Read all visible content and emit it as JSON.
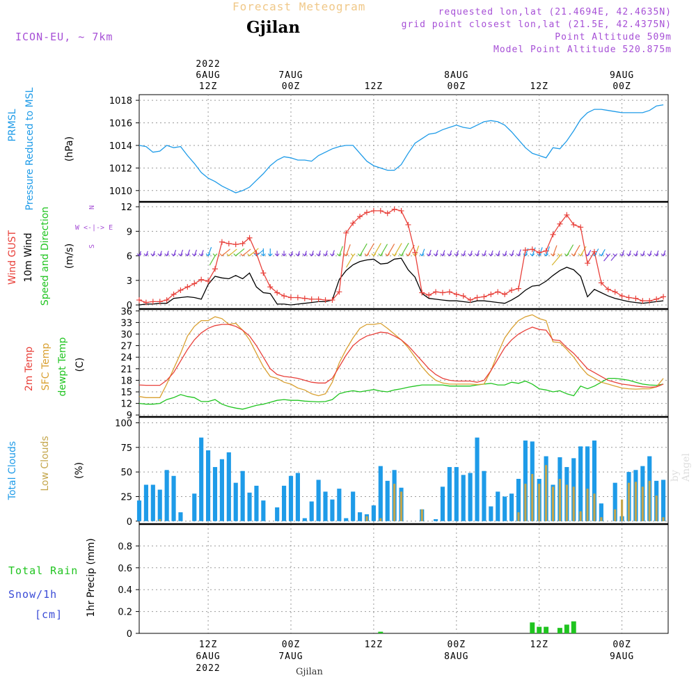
{
  "header": {
    "title": "Forecast Meteogram",
    "location": "Gjilan",
    "model": "ICON-EU, ~ 7km",
    "requested": "requested lon,lat (21.4694E, 42.4635N)",
    "grid_point": "grid point closest lon,lat (21.5E, 42.4375N)",
    "point_alt": "Point Altitude 509m",
    "model_alt": "Model Point Altitude 520.875m",
    "watermark": "by Angel",
    "footer_location": "Gjilan"
  },
  "colors": {
    "pressure": "#1e9be8",
    "gust": "#e8403a",
    "wind": "#000000",
    "t2m": "#e8403a",
    "tsfc": "#d9a030",
    "dewpt": "#1fc41f",
    "total_clouds": "#1e9be8",
    "low_clouds": "#c4a64c",
    "rain": "#1fc41f",
    "snow": "#3a4bd6",
    "header_purple": "#a64fd6",
    "title_gold": "#f0c888"
  },
  "chart_data": [
    {
      "type": "line",
      "name": "pressure",
      "ylabel_lines": [
        "PRMSL",
        "Pressure Reduced to MSL"
      ],
      "unit": "(hPa)",
      "ylim": [
        1009,
        1018.5
      ],
      "yticks": [
        1010,
        1012,
        1014,
        1016,
        1018
      ],
      "x_hours_from_6aug00z": [
        0,
        1,
        2,
        3,
        4,
        5,
        6,
        7,
        8,
        9,
        10,
        11,
        12,
        13,
        14,
        15,
        16,
        17,
        18,
        19,
        20,
        21,
        22,
        23,
        24,
        25,
        26,
        27,
        28,
        29,
        30,
        31,
        32,
        33,
        34,
        35,
        36,
        37,
        38,
        39,
        40,
        41,
        42,
        43,
        44,
        45,
        46,
        47,
        48,
        49,
        50,
        51,
        52,
        53,
        54,
        55,
        56,
        57,
        58,
        59,
        60,
        61,
        62,
        63,
        64,
        65,
        66,
        67,
        68,
        69,
        70,
        71,
        72,
        73,
        74,
        75,
        76
      ],
      "values": [
        1014,
        1013.9,
        1013.4,
        1013.5,
        1014,
        1013.8,
        1013.9,
        1013.1,
        1012.4,
        1011.6,
        1011.1,
        1010.8,
        1010.4,
        1010.1,
        1009.8,
        1010.0,
        1010.3,
        1010.9,
        1011.5,
        1012.2,
        1012.7,
        1013.0,
        1012.9,
        1012.7,
        1012.7,
        1012.6,
        1013.1,
        1013.4,
        1013.7,
        1013.9,
        1014.0,
        1014.0,
        1013.3,
        1012.6,
        1012.2,
        1012.0,
        1011.8,
        1011.8,
        1012.3,
        1013.3,
        1014.2,
        1014.6,
        1015.0,
        1015.1,
        1015.4,
        1015.6,
        1015.8,
        1015.6,
        1015.5,
        1015.8,
        1016.1,
        1016.2,
        1016.1,
        1015.8,
        1015.2,
        1014.5,
        1013.8,
        1013.3,
        1013.1,
        1012.9,
        1013.8,
        1013.7,
        1014.4,
        1015.3,
        1016.3,
        1016.9,
        1017.2,
        1017.2,
        1017.1,
        1017.0,
        1016.9,
        1016.9,
        1016.9,
        1016.9,
        1017.1,
        1017.5,
        1017.6
      ]
    },
    {
      "type": "line",
      "name": "wind",
      "ylabel_lines": [
        "Wind GUST",
        "10m Wind",
        "Speed and Direction"
      ],
      "unit": "(m/s)",
      "compass": [
        "N",
        "W <-|-> E",
        "S"
      ],
      "ylim": [
        -0.5,
        12.6
      ],
      "yticks": [
        0,
        3,
        6,
        9,
        12
      ],
      "x_hours_from_6aug00z": [
        0,
        1,
        2,
        3,
        4,
        5,
        6,
        7,
        8,
        9,
        10,
        11,
        12,
        13,
        14,
        15,
        16,
        17,
        18,
        19,
        20,
        21,
        22,
        23,
        24,
        25,
        26,
        27,
        28,
        29,
        30,
        31,
        32,
        33,
        34,
        35,
        36,
        37,
        38,
        39,
        40,
        41,
        42,
        43,
        44,
        45,
        46,
        47,
        48,
        49,
        50,
        51,
        52,
        53,
        54,
        55,
        56,
        57,
        58,
        59,
        60,
        61,
        62,
        63,
        64,
        65,
        66,
        67,
        68,
        69,
        70,
        71,
        72,
        73,
        74,
        75,
        76
      ],
      "gust": [
        0.6,
        0.3,
        0.4,
        0.4,
        0.6,
        1.3,
        1.8,
        2.2,
        2.6,
        3.1,
        2.9,
        4.4,
        7.7,
        7.5,
        7.4,
        7.5,
        8.2,
        6.3,
        3.9,
        2.2,
        1.5,
        1.1,
        0.9,
        0.9,
        0.8,
        0.7,
        0.7,
        0.6,
        0.6,
        1.6,
        8.8,
        10.0,
        10.8,
        11.3,
        11.5,
        11.5,
        11.2,
        11.7,
        11.5,
        9.8,
        6.4,
        1.5,
        1.2,
        1.6,
        1.5,
        1.6,
        1.3,
        1.1,
        0.6,
        0.9,
        1.0,
        1.3,
        1.6,
        1.3,
        1.8,
        2.0,
        6.7,
        6.8,
        6.4,
        6.6,
        8.6,
        9.9,
        11.0,
        9.8,
        9.5,
        5.1,
        6.5,
        2.7,
        1.9,
        1.6,
        1.1,
        0.9,
        0.8,
        0.5,
        0.5,
        0.7,
        1.0
      ],
      "speed": [
        0.0,
        0.1,
        0.1,
        0.2,
        0.2,
        0.8,
        0.9,
        1.0,
        0.9,
        0.7,
        2.5,
        3.5,
        3.3,
        3.2,
        3.6,
        3.2,
        3.9,
        2.2,
        1.5,
        1.4,
        0.1,
        0.1,
        0.0,
        0.1,
        0.2,
        0.3,
        0.4,
        0.4,
        0.6,
        3.1,
        4.2,
        4.9,
        5.3,
        5.5,
        5.6,
        5.0,
        5.1,
        5.6,
        5.7,
        4.3,
        3.4,
        1.4,
        0.8,
        0.7,
        0.6,
        0.5,
        0.5,
        0.4,
        0.3,
        0.5,
        0.5,
        0.4,
        0.3,
        0.2,
        0.6,
        1.1,
        1.8,
        2.3,
        2.4,
        2.9,
        3.6,
        4.2,
        4.6,
        4.3,
        3.5,
        1.0,
        1.9,
        1.5,
        1.1,
        0.8,
        0.6,
        0.4,
        0.3,
        0.2,
        0.3,
        0.4,
        0.5
      ],
      "dir_deg": [
        200,
        200,
        200,
        200,
        200,
        200,
        200,
        200,
        200,
        200,
        200,
        30,
        230,
        230,
        230,
        230,
        230,
        230,
        180,
        180,
        180,
        180,
        200,
        200,
        200,
        200,
        200,
        200,
        200,
        200,
        200,
        30,
        210,
        210,
        210,
        210,
        210,
        210,
        210,
        210,
        200,
        200,
        200,
        200,
        200,
        200,
        200,
        200,
        200,
        200,
        200,
        200,
        200,
        200,
        200,
        200,
        200,
        200,
        200,
        200,
        200,
        40,
        210,
        210,
        210,
        210,
        210,
        210,
        40,
        40,
        200,
        200,
        200,
        200,
        200,
        200,
        200
      ]
    },
    {
      "type": "line",
      "name": "temperature",
      "ylabel_lines": [
        "2m Temp",
        "SFC Temp",
        "dewpt Temp"
      ],
      "unit": "(C)",
      "ylim": [
        8.5,
        36.5
      ],
      "yticks": [
        9,
        12,
        15,
        18,
        21,
        24,
        27,
        30,
        33,
        36
      ],
      "x_hours_from_6aug00z": [
        0,
        1,
        2,
        3,
        4,
        5,
        6,
        7,
        8,
        9,
        10,
        11,
        12,
        13,
        14,
        15,
        16,
        17,
        18,
        19,
        20,
        21,
        22,
        23,
        24,
        25,
        26,
        27,
        28,
        29,
        30,
        31,
        32,
        33,
        34,
        35,
        36,
        37,
        38,
        39,
        40,
        41,
        42,
        43,
        44,
        45,
        46,
        47,
        48,
        49,
        50,
        51,
        52,
        53,
        54,
        55,
        56,
        57,
        58,
        59,
        60,
        61,
        62,
        63,
        64,
        65,
        66,
        67,
        68,
        69,
        70,
        71,
        72,
        73,
        74,
        75,
        76
      ],
      "t2m": [
        16.8,
        16.7,
        16.7,
        16.7,
        18.0,
        20.0,
        23.0,
        26.0,
        28.5,
        30.3,
        31.5,
        32.2,
        32.5,
        32.5,
        32.0,
        31.0,
        29.5,
        27.0,
        24.0,
        21.0,
        19.5,
        19.0,
        18.8,
        18.5,
        18.0,
        17.5,
        17.3,
        17.3,
        18.5,
        21.5,
        24.5,
        27.0,
        28.5,
        29.5,
        30.0,
        30.5,
        30.3,
        29.5,
        28.5,
        27.0,
        25.0,
        23.0,
        21.0,
        19.5,
        18.5,
        18.0,
        17.8,
        17.8,
        17.8,
        17.5,
        18.0,
        20.5,
        23.5,
        26.5,
        28.5,
        30.0,
        31.0,
        31.8,
        31.2,
        31.0,
        28.5,
        28.3,
        26.5,
        25.0,
        23.0,
        21.0,
        20.0,
        19.0,
        18.0,
        17.5,
        17.0,
        16.8,
        16.5,
        16.3,
        16.2,
        16.3,
        17.0
      ],
      "tsfc": [
        13.8,
        13.5,
        13.5,
        13.5,
        17.0,
        21.0,
        25.0,
        29.5,
        32.0,
        33.5,
        33.5,
        34.5,
        34.0,
        32.5,
        32.8,
        31.0,
        28.5,
        25.0,
        21.5,
        19.0,
        18.5,
        17.5,
        17.0,
        16.0,
        15.5,
        14.5,
        14.0,
        14.5,
        17.5,
        22.5,
        26.0,
        29.0,
        31.5,
        32.5,
        32.5,
        32.8,
        31.5,
        30.0,
        28.5,
        26.5,
        24.0,
        21.5,
        19.5,
        18.0,
        17.3,
        17.0,
        17.0,
        17.0,
        17.0,
        16.9,
        17.0,
        20.5,
        25.0,
        29.0,
        31.5,
        33.5,
        34.5,
        35.0,
        34.0,
        33.5,
        28.0,
        27.8,
        26.0,
        24.0,
        21.5,
        19.5,
        18.5,
        17.5,
        17.0,
        16.5,
        16.0,
        15.8,
        15.7,
        15.8,
        15.8,
        16.3,
        18.5
      ],
      "dewpt": [
        12.0,
        11.8,
        11.8,
        12.0,
        13.0,
        13.5,
        14.3,
        13.8,
        13.5,
        12.5,
        12.5,
        13.0,
        11.8,
        11.2,
        10.8,
        10.5,
        11.0,
        11.5,
        11.8,
        12.3,
        12.8,
        13.0,
        12.8,
        12.8,
        12.6,
        12.5,
        12.4,
        12.5,
        13.0,
        14.5,
        15.0,
        15.3,
        15.0,
        15.3,
        15.6,
        15.2,
        15.0,
        15.5,
        15.8,
        16.2,
        16.5,
        16.8,
        16.8,
        16.8,
        16.8,
        16.5,
        16.5,
        16.5,
        16.5,
        16.8,
        17.0,
        17.2,
        16.8,
        16.8,
        17.5,
        17.2,
        17.8,
        17.0,
        15.8,
        15.5,
        15.0,
        15.3,
        14.5,
        14.0,
        16.5,
        15.8,
        16.5,
        17.5,
        18.5,
        18.5,
        18.3,
        18.0,
        17.5,
        17.0,
        16.8,
        16.7,
        17.0
      ]
    },
    {
      "type": "bar",
      "name": "clouds",
      "ylabel_lines": [
        "Total Clouds",
        "Low Clouds"
      ],
      "unit": "(%)",
      "ylim": [
        -3,
        106
      ],
      "yticks": [
        0,
        25,
        50,
        75,
        100
      ],
      "x_hours_from_6aug00z": [
        0,
        1,
        2,
        3,
        4,
        5,
        6,
        7,
        8,
        9,
        10,
        11,
        12,
        13,
        14,
        15,
        16,
        17,
        18,
        19,
        20,
        21,
        22,
        23,
        24,
        25,
        26,
        27,
        28,
        29,
        30,
        31,
        32,
        33,
        34,
        35,
        36,
        37,
        38,
        39,
        40,
        41,
        42,
        43,
        44,
        45,
        46,
        47,
        48,
        49,
        50,
        51,
        52,
        53,
        54,
        55,
        56,
        57,
        58,
        59,
        60,
        61,
        62,
        63,
        64,
        65,
        66,
        67,
        68,
        69,
        70,
        71,
        72,
        73,
        74,
        75,
        76
      ],
      "total": [
        21,
        37,
        37,
        32,
        52,
        46,
        9,
        0,
        28,
        85,
        72,
        55,
        63,
        70,
        39,
        51,
        29,
        36,
        21,
        0,
        14,
        36,
        46,
        49,
        3,
        20,
        42,
        30,
        22,
        33,
        3,
        30,
        9,
        7,
        16,
        56,
        41,
        52,
        34,
        0,
        0,
        12,
        0,
        2,
        35,
        55,
        55,
        47,
        49,
        85,
        51,
        15,
        30,
        25,
        28,
        43,
        82,
        81,
        43,
        66,
        37,
        65,
        55,
        64,
        76,
        76,
        82,
        18,
        0,
        39,
        5,
        50,
        52,
        56,
        66,
        41,
        42
      ],
      "low": [
        0,
        0,
        0,
        2,
        0,
        0,
        0,
        0,
        0,
        0,
        0,
        0,
        0,
        0,
        0,
        0,
        0,
        0,
        0,
        0,
        0,
        0,
        0,
        0,
        0,
        0,
        0,
        0,
        0,
        0,
        0,
        0,
        0,
        5,
        0,
        3,
        0,
        38,
        30,
        0,
        0,
        12,
        0,
        0,
        0,
        0,
        0,
        0,
        0,
        0,
        0,
        0,
        0,
        0,
        0,
        9,
        38,
        48,
        38,
        57,
        35,
        43,
        37,
        35,
        10,
        33,
        28,
        4,
        0,
        12,
        22,
        39,
        40,
        35,
        41,
        26,
        4
      ]
    },
    {
      "type": "bar",
      "name": "precip",
      "ylabel_lines": [
        "Total Rain",
        "Snow/1h",
        "[cm]"
      ],
      "unit": "1hr Precip (mm)",
      "ylim": [
        0,
        1.0
      ],
      "yticks": [
        0,
        0.2,
        0.4,
        0.6,
        0.8
      ],
      "ytick_labels": [
        "0",
        "0.2",
        "0.4",
        "0.6",
        "0.8"
      ],
      "rain_events": [
        {
          "h": 35,
          "mm": 0.015
        },
        {
          "h": 57,
          "mm": 0.1
        },
        {
          "h": 58,
          "mm": 0.06
        },
        {
          "h": 59,
          "mm": 0.06
        },
        {
          "h": 61,
          "mm": 0.05
        },
        {
          "h": 62,
          "mm": 0.08
        },
        {
          "h": 63,
          "mm": 0.11
        }
      ]
    }
  ],
  "time_axis": {
    "top": [
      {
        "h": 10,
        "lines": [
          "2022",
          "6AUG",
          "12Z"
        ]
      },
      {
        "h": 22,
        "lines": [
          "7AUG",
          "00Z"
        ]
      },
      {
        "h": 34,
        "lines": [
          "12Z"
        ]
      },
      {
        "h": 46,
        "lines": [
          "8AUG",
          "00Z"
        ]
      },
      {
        "h": 58,
        "lines": [
          "12Z"
        ]
      },
      {
        "h": 70,
        "lines": [
          "9AUG",
          "00Z"
        ]
      }
    ],
    "bottom": [
      {
        "h": 10,
        "lines": [
          "12Z",
          "6AUG",
          "2022"
        ]
      },
      {
        "h": 22,
        "lines": [
          "00Z",
          "7AUG"
        ]
      },
      {
        "h": 34,
        "lines": [
          "12Z"
        ]
      },
      {
        "h": 46,
        "lines": [
          "00Z",
          "8AUG"
        ]
      },
      {
        "h": 58,
        "lines": [
          "12Z"
        ]
      },
      {
        "h": 70,
        "lines": [
          "00Z",
          "9AUG"
        ]
      }
    ]
  }
}
